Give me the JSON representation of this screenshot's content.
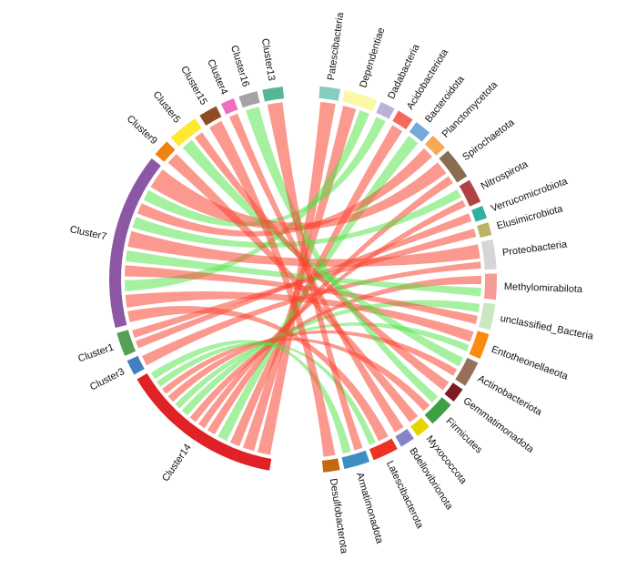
{
  "figure": {
    "background": "#ffffff",
    "label_color": "#111111"
  },
  "chart_data": {
    "type": "chord",
    "title": "",
    "legend_position": "none",
    "grid": false,
    "ribbon_colors": {
      "red": "rgba(250,70,50,0.55)",
      "green": "rgba(75,228,65,0.5)"
    },
    "clusters": [
      {
        "label": "Cluster14",
        "color": "#E02125",
        "size": 48
      },
      {
        "label": "Cluster3",
        "color": "#4380C0",
        "size": 4.5
      },
      {
        "label": "Cluster1",
        "color": "#55A054",
        "size": 7
      },
      {
        "label": "Cluster7",
        "color": "#8C57A4",
        "size": 52
      },
      {
        "label": "Cluster9",
        "color": "#F08210",
        "size": 5
      },
      {
        "label": "Cluster5",
        "color": "#FFE92E",
        "size": 9
      },
      {
        "label": "Cluster15",
        "color": "#8F4B21",
        "size": 5.5
      },
      {
        "label": "Cluster4",
        "color": "#EE6FC0",
        "size": 4
      },
      {
        "label": "Cluster16",
        "color": "#A3A3A3",
        "size": 5.5
      },
      {
        "label": "Cluster13",
        "color": "#57B598",
        "size": 6
      }
    ],
    "phyla": [
      {
        "label": "Patescibacteria",
        "color": "#85CDC1",
        "size": 5.5
      },
      {
        "label": "Dependentiae",
        "color": "#FBF7A5",
        "size": 9
      },
      {
        "label": "Dadabacteria",
        "color": "#B9B3D8",
        "size": 4
      },
      {
        "label": "Acidobacteriota",
        "color": "#F4685E",
        "size": 4.5
      },
      {
        "label": "Bacteroidota",
        "color": "#74A9D8",
        "size": 4.5
      },
      {
        "label": "Planctomycetota",
        "color": "#F9A953",
        "size": 4.5
      },
      {
        "label": "Spirochaetota",
        "color": "#8A6C4F",
        "size": 8.5
      },
      {
        "label": "Nitrospirota",
        "color": "#B24345",
        "size": 6.5
      },
      {
        "label": "Verrucomicrobiota",
        "color": "#32B1A1",
        "size": 3.5
      },
      {
        "label": "Elusimicrobiota",
        "color": "#BCB465",
        "size": 3.5
      },
      {
        "label": "Proteobacteria",
        "color": "#D6D6D6",
        "size": 8
      },
      {
        "label": "Methylomirabilota",
        "color": "#F79B95",
        "size": 7
      },
      {
        "label": "unclassified_Bacteria",
        "color": "#C9E8C2",
        "size": 7
      },
      {
        "label": "Entotheonellaeota",
        "color": "#F98B10",
        "size": 7
      },
      {
        "label": "Actinobacteriota",
        "color": "#96705A",
        "size": 7
      },
      {
        "label": "Gemmatimonadota",
        "color": "#7E1B22",
        "size": 4
      },
      {
        "label": "Firmicutes",
        "color": "#3EA045",
        "size": 7
      },
      {
        "label": "Myxococcota",
        "color": "#E5D400",
        "size": 4
      },
      {
        "label": "Bdellovibrionota",
        "color": "#8584C6",
        "size": 4
      },
      {
        "label": "Latescibacterota",
        "color": "#ED3123",
        "size": 7
      },
      {
        "label": "Armatimonadota",
        "color": "#3E8EC4",
        "size": 7
      },
      {
        "label": "Desulfobacterota",
        "color": "#C2690F",
        "size": 4.5
      }
    ],
    "links": [
      {
        "source": "Cluster14",
        "target": "Patescibacteria",
        "color": "red",
        "sf": [
          0,
          0.11
        ],
        "tf": [
          0,
          1
        ]
      },
      {
        "source": "Cluster14",
        "target": "Dependentiae",
        "color": "red",
        "sf": [
          0.11,
          0.21
        ],
        "tf": [
          0,
          0.55
        ]
      },
      {
        "source": "Cluster14",
        "target": "Acidobacteriota",
        "color": "red",
        "sf": [
          0.21,
          0.3
        ],
        "tf": [
          0,
          1
        ]
      },
      {
        "source": "Cluster14",
        "target": "Bacteroidota",
        "color": "green",
        "sf": [
          0.3,
          0.39
        ],
        "tf": [
          0,
          1
        ]
      },
      {
        "source": "Cluster14",
        "target": "Spirochaetota",
        "color": "red",
        "sf": [
          0.39,
          0.47
        ],
        "tf": [
          0.6,
          1
        ]
      },
      {
        "source": "Cluster14",
        "target": "Nitrospirota",
        "color": "red",
        "sf": [
          0.47,
          0.54
        ],
        "tf": [
          0.55,
          1
        ]
      },
      {
        "source": "Cluster14",
        "target": "Methylomirabilota",
        "color": "red",
        "sf": [
          0.54,
          0.61
        ],
        "tf": [
          0,
          0.5
        ]
      },
      {
        "source": "Cluster14",
        "target": "unclassified_Bacteria",
        "color": "green",
        "sf": [
          0.61,
          0.68
        ],
        "tf": [
          0,
          0.5
        ]
      },
      {
        "source": "Cluster14",
        "target": "Entotheonellaeota",
        "color": "green",
        "sf": [
          0.68,
          0.74
        ],
        "tf": [
          0.6,
          1
        ]
      },
      {
        "source": "Cluster14",
        "target": "Actinobacteriota",
        "color": "red",
        "sf": [
          0.74,
          0.81
        ],
        "tf": [
          0.55,
          1
        ]
      },
      {
        "source": "Cluster14",
        "target": "Firmicutes",
        "color": "red",
        "sf": [
          0.81,
          0.87
        ],
        "tf": [
          0.5,
          1
        ]
      },
      {
        "source": "Cluster14",
        "target": "Latescibacterota",
        "color": "green",
        "sf": [
          0.87,
          0.93
        ],
        "tf": [
          0.6,
          1
        ]
      },
      {
        "source": "Cluster14",
        "target": "Armatimonadota",
        "color": "green",
        "sf": [
          0.93,
          1
        ],
        "tf": [
          0.5,
          1
        ]
      },
      {
        "source": "Cluster3",
        "target": "Proteobacteria",
        "color": "red",
        "sf": [
          0,
          1
        ],
        "tf": [
          0.65,
          1
        ]
      },
      {
        "source": "Cluster1",
        "target": "Verrucomicrobiota",
        "color": "red",
        "sf": [
          0,
          0.5
        ],
        "tf": [
          0,
          1
        ]
      },
      {
        "source": "Cluster1",
        "target": "Elusimicrobiota",
        "color": "red",
        "sf": [
          0.5,
          1
        ],
        "tf": [
          0,
          1
        ]
      },
      {
        "source": "Cluster7",
        "target": "Latescibacterota",
        "color": "red",
        "sf": [
          0,
          0.09
        ],
        "tf": [
          0,
          0.6
        ]
      },
      {
        "source": "Cluster7",
        "target": "Entotheonellaeota",
        "color": "red",
        "sf": [
          0.09,
          0.19
        ],
        "tf": [
          0,
          0.6
        ]
      },
      {
        "source": "Cluster7",
        "target": "Dependentiae",
        "color": "green",
        "sf": [
          0.19,
          0.28
        ],
        "tf": [
          0.55,
          1
        ]
      },
      {
        "source": "Cluster7",
        "target": "unclassified_Bacteria",
        "color": "red",
        "sf": [
          0.28,
          0.37
        ],
        "tf": [
          0.5,
          1
        ]
      },
      {
        "source": "Cluster7",
        "target": "Methylomirabilota",
        "color": "green",
        "sf": [
          0.37,
          0.46
        ],
        "tf": [
          0.5,
          1
        ]
      },
      {
        "source": "Cluster7",
        "target": "Proteobacteria",
        "color": "red",
        "sf": [
          0.46,
          0.58
        ],
        "tf": [
          0,
          0.65
        ]
      },
      {
        "source": "Cluster7",
        "target": "Nitrospirota",
        "color": "green",
        "sf": [
          0.58,
          0.67
        ],
        "tf": [
          0,
          0.55
        ]
      },
      {
        "source": "Cluster7",
        "target": "Planctomycetota",
        "color": "red",
        "sf": [
          0.67,
          0.76
        ],
        "tf": [
          0,
          1
        ]
      },
      {
        "source": "Cluster7",
        "target": "Dadabacteria",
        "color": "green",
        "sf": [
          0.76,
          0.85
        ],
        "tf": [
          0,
          1
        ]
      },
      {
        "source": "Cluster7",
        "target": "Spirochaetota",
        "color": "red",
        "sf": [
          0.85,
          1
        ],
        "tf": [
          0,
          0.6
        ]
      },
      {
        "source": "Cluster9",
        "target": "Myxococcota",
        "color": "red",
        "sf": [
          0,
          1
        ],
        "tf": [
          0,
          1
        ]
      },
      {
        "source": "Cluster5",
        "target": "Actinobacteriota",
        "color": "green",
        "sf": [
          0,
          0.55
        ],
        "tf": [
          0,
          0.55
        ]
      },
      {
        "source": "Cluster5",
        "target": "Gemmatimonadota",
        "color": "red",
        "sf": [
          0.55,
          1
        ],
        "tf": [
          0,
          1
        ]
      },
      {
        "source": "Cluster15",
        "target": "Desulfobacterota",
        "color": "red",
        "sf": [
          0,
          1
        ],
        "tf": [
          0,
          1
        ]
      },
      {
        "source": "Cluster4",
        "target": "Bdellovibrionota",
        "color": "red",
        "sf": [
          0,
          1
        ],
        "tf": [
          0,
          1
        ]
      },
      {
        "source": "Cluster16",
        "target": "Firmicutes",
        "color": "green",
        "sf": [
          0,
          1
        ],
        "tf": [
          0,
          0.5
        ]
      },
      {
        "source": "Cluster13",
        "target": "Armatimonadota",
        "color": "red",
        "sf": [
          0,
          1
        ],
        "tf": [
          0,
          0.5
        ]
      }
    ],
    "layout_hints": {
      "phyla_arc_span_deg": [
        5,
        174
      ],
      "clusters_arc_span_deg": [
        190,
        354
      ],
      "direction": "clockwise-from-top"
    }
  }
}
